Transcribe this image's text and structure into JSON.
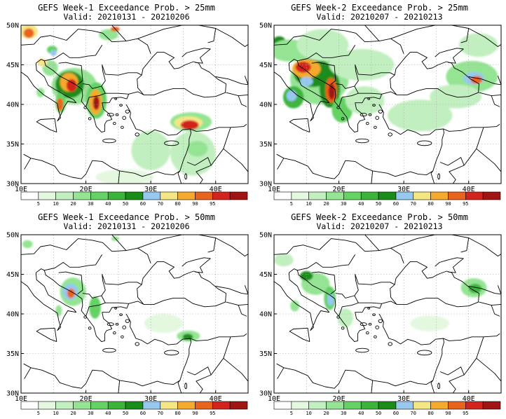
{
  "panels": [
    {
      "title": "GEFS Week-1 Exceedance Prob. > 25mm",
      "valid": "Valid: 20210131 - 20210206"
    },
    {
      "title": "GEFS Week-2 Exceedance Prob. > 25mm",
      "valid": "Valid: 20210207 - 20210213"
    },
    {
      "title": "GEFS Week-1 Exceedance Prob. > 50mm",
      "valid": "Valid: 20210131 - 20210206"
    },
    {
      "title": "GEFS Week-2 Exceedance Prob. > 50mm",
      "valid": "Valid: 20210207 - 20210213"
    }
  ],
  "axes": {
    "lat_labels": [
      "50N",
      "45N",
      "40N",
      "35N",
      "30N"
    ],
    "lon_labels": [
      "10E",
      "20E",
      "30E",
      "40E"
    ]
  },
  "colorbar": {
    "labels": [
      "5",
      "10",
      "20",
      "30",
      "40",
      "50",
      "60",
      "70",
      "80",
      "90",
      "95"
    ],
    "colors": [
      "#ffffff",
      "#e4f8e0",
      "#c2efc0",
      "#94e494",
      "#64d264",
      "#3cb43c",
      "#1a8c1a",
      "#96c8f0",
      "#f5e685",
      "#f5aa2d",
      "#e8641e",
      "#d2231e",
      "#a01414"
    ]
  },
  "colors": {
    "land_outline": "#000000",
    "grid": "#a8a8a8"
  }
}
